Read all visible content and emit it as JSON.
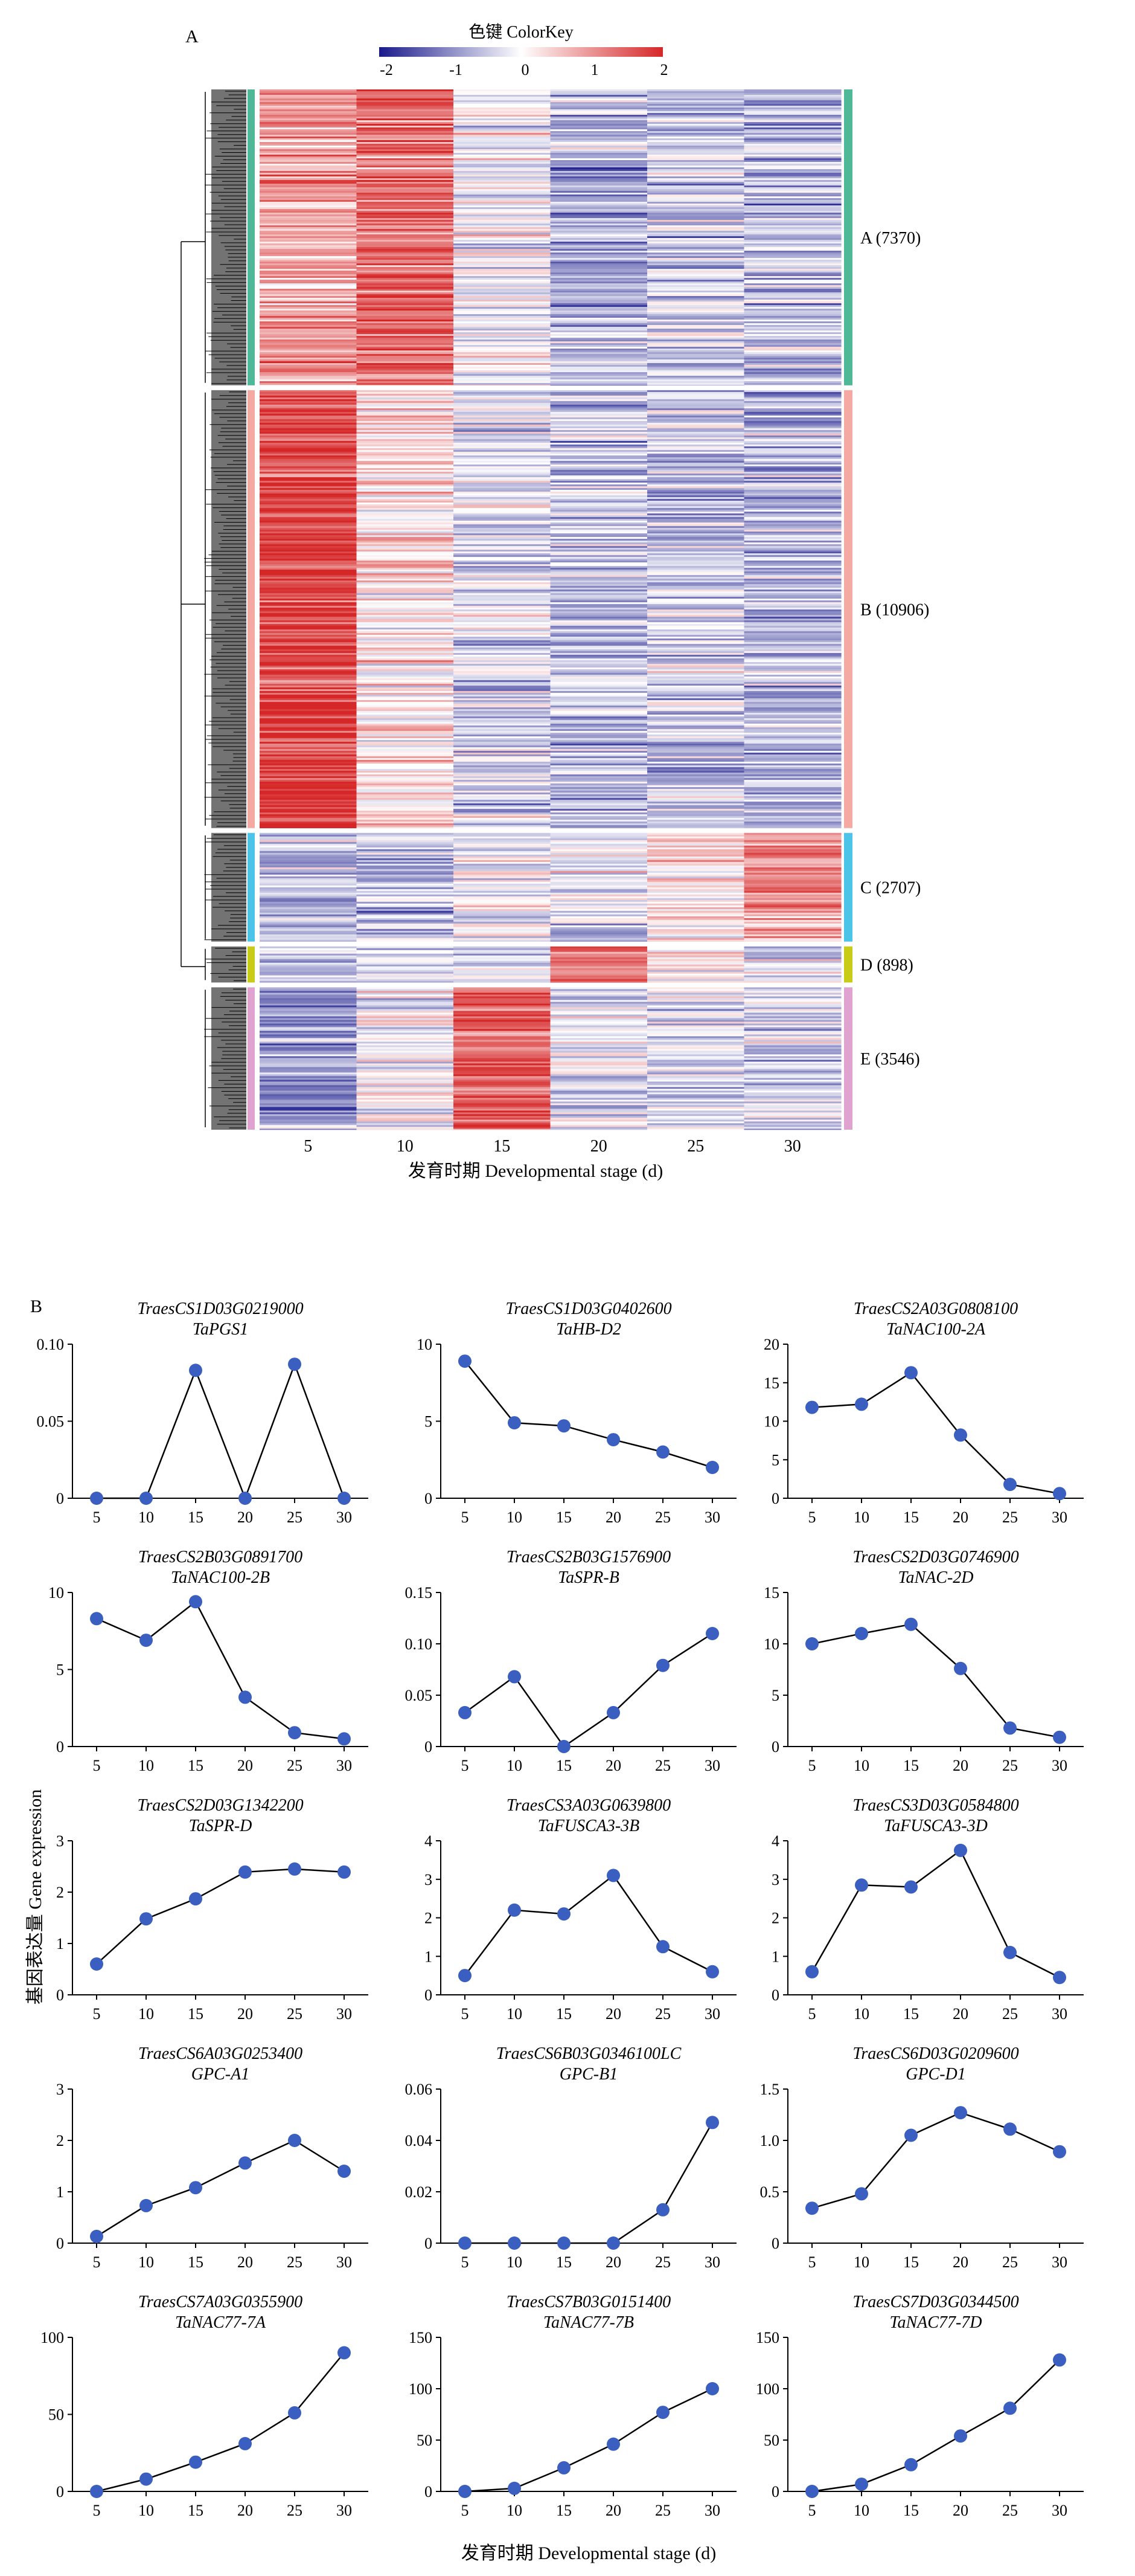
{
  "panel_a": {
    "label": "A",
    "colorkey_title": "色键 ColorKey",
    "colorkey_ticks": [
      "-2",
      "-1",
      "0",
      "1",
      "2"
    ],
    "colorkey_colors": [
      "#1a1a8c",
      "#ffffff",
      "#d62728"
    ],
    "x_ticks": [
      "5",
      "10",
      "15",
      "20",
      "25",
      "30"
    ],
    "xlabel": "发育时期 Developmental stage (d)",
    "clusters": [
      {
        "name": "A (7370)",
        "count": 7370,
        "color": "#4fb896"
      },
      {
        "name": "B (10906)",
        "count": 10906,
        "color": "#f4a9a3"
      },
      {
        "name": "C (2707)",
        "count": 2707,
        "color": "#4bc4e8"
      },
      {
        "name": "D (898)",
        "count": 898,
        "color": "#c9cc16"
      },
      {
        "name": "E (3546)",
        "count": 3546,
        "color": "#e0a3cf"
      }
    ]
  },
  "chart_data": [
    {
      "type": "heatmap",
      "title": "",
      "xlabel": "发育时期 Developmental stage (d)",
      "x": [
        "5",
        "10",
        "15",
        "20",
        "25",
        "30"
      ],
      "value_range": [
        -2,
        2
      ],
      "clusters": [
        "A (7370)",
        "B (10906)",
        "C (2707)",
        "D (898)",
        "E (3546)"
      ]
    },
    {
      "type": "line",
      "panel_label": "B",
      "xlabel": "发育时期 Developmental stage (d)",
      "ylabel": "基因表达量 Gene expression",
      "x": [
        5,
        10,
        15,
        20,
        25,
        30
      ],
      "line_color": "#000000",
      "marker_color": "#3a5fc0",
      "subplots": [
        {
          "gene_id": "TraesCS1D03G0219000",
          "gene_name": "TaPGS1",
          "ylim": [
            0,
            0.1
          ],
          "yticks": [
            "0",
            "0.05",
            "0.10"
          ],
          "values": [
            0,
            0,
            0.083,
            0,
            0.087,
            0
          ]
        },
        {
          "gene_id": "TraesCS1D03G0402600",
          "gene_name": "TaHB-D2",
          "ylim": [
            0,
            10
          ],
          "yticks": [
            "0",
            "5",
            "10"
          ],
          "values": [
            8.9,
            4.9,
            4.7,
            3.8,
            3.0,
            2.0
          ]
        },
        {
          "gene_id": "TraesCS2A03G0808100",
          "gene_name": "TaNAC100-2A",
          "ylim": [
            0,
            20
          ],
          "yticks": [
            "0",
            "5",
            "10",
            "15",
            "20"
          ],
          "values": [
            11.8,
            12.2,
            16.3,
            8.2,
            1.8,
            0.6
          ]
        },
        {
          "gene_id": "TraesCS2B03G0891700",
          "gene_name": "TaNAC100-2B",
          "ylim": [
            0,
            10
          ],
          "yticks": [
            "0",
            "5",
            "10"
          ],
          "values": [
            8.3,
            6.9,
            9.4,
            3.2,
            0.9,
            0.5
          ]
        },
        {
          "gene_id": "TraesCS2B03G1576900",
          "gene_name": "TaSPR-B",
          "ylim": [
            0,
            0.15
          ],
          "yticks": [
            "0",
            "0.05",
            "0.10",
            "0.15"
          ],
          "values": [
            0.033,
            0.068,
            0.0,
            0.033,
            0.079,
            0.11
          ]
        },
        {
          "gene_id": "TraesCS2D03G0746900",
          "gene_name": "TaNAC-2D",
          "ylim": [
            0,
            15
          ],
          "yticks": [
            "0",
            "5",
            "10",
            "15"
          ],
          "values": [
            10.0,
            11.0,
            11.9,
            7.6,
            1.8,
            0.9
          ]
        },
        {
          "gene_id": "TraesCS2D03G1342200",
          "gene_name": "TaSPR-D",
          "ylim": [
            0,
            3
          ],
          "yticks": [
            "0",
            "1",
            "2",
            "3"
          ],
          "values": [
            0.6,
            1.48,
            1.87,
            2.39,
            2.45,
            2.39
          ]
        },
        {
          "gene_id": "TraesCS3A03G0639800",
          "gene_name": "TaFUSCA3-3B",
          "ylim": [
            0,
            4
          ],
          "yticks": [
            "0",
            "1",
            "2",
            "3",
            "4"
          ],
          "values": [
            0.5,
            2.2,
            2.1,
            3.1,
            1.25,
            0.6
          ]
        },
        {
          "gene_id": "TraesCS3D03G0584800",
          "gene_name": "TaFUSCA3-3D",
          "ylim": [
            0,
            4
          ],
          "yticks": [
            "0",
            "1",
            "2",
            "3",
            "4"
          ],
          "values": [
            0.6,
            2.85,
            2.8,
            3.75,
            1.1,
            0.45
          ]
        },
        {
          "gene_id": "TraesCS6A03G0253400",
          "gene_name": "GPC-A1",
          "ylim": [
            0,
            3
          ],
          "yticks": [
            "0",
            "1",
            "2",
            "3"
          ],
          "values": [
            0.13,
            0.73,
            1.08,
            1.56,
            2.0,
            1.4
          ]
        },
        {
          "gene_id": "TraesCS6B03G0346100LC",
          "gene_name": "GPC-B1",
          "ylim": [
            0,
            0.06
          ],
          "yticks": [
            "0",
            "0.02",
            "0.04",
            "0.06"
          ],
          "values": [
            0,
            0,
            0,
            0,
            0.013,
            0.047
          ]
        },
        {
          "gene_id": "TraesCS6D03G0209600",
          "gene_name": "GPC-D1",
          "ylim": [
            0,
            1.5
          ],
          "yticks": [
            "0",
            "0.5",
            "1.0",
            "1.5"
          ],
          "values": [
            0.34,
            0.48,
            1.05,
            1.27,
            1.11,
            0.89
          ]
        },
        {
          "gene_id": "TraesCS7A03G0355900",
          "gene_name": "TaNAC77-7A",
          "ylim": [
            0,
            100
          ],
          "yticks": [
            "0",
            "50",
            "100"
          ],
          "values": [
            0,
            8,
            19,
            31,
            51,
            90
          ]
        },
        {
          "gene_id": "TraesCS7B03G0151400",
          "gene_name": "TaNAC77-7B",
          "ylim": [
            0,
            150
          ],
          "yticks": [
            "0",
            "50",
            "100",
            "150"
          ],
          "values": [
            0,
            3,
            23,
            46,
            77,
            100
          ]
        },
        {
          "gene_id": "TraesCS7D03G0344500",
          "gene_name": "TaNAC77-7D",
          "ylim": [
            0,
            150
          ],
          "yticks": [
            "0",
            "50",
            "100",
            "150"
          ],
          "values": [
            0,
            7,
            26,
            54,
            81,
            128
          ]
        }
      ]
    }
  ]
}
